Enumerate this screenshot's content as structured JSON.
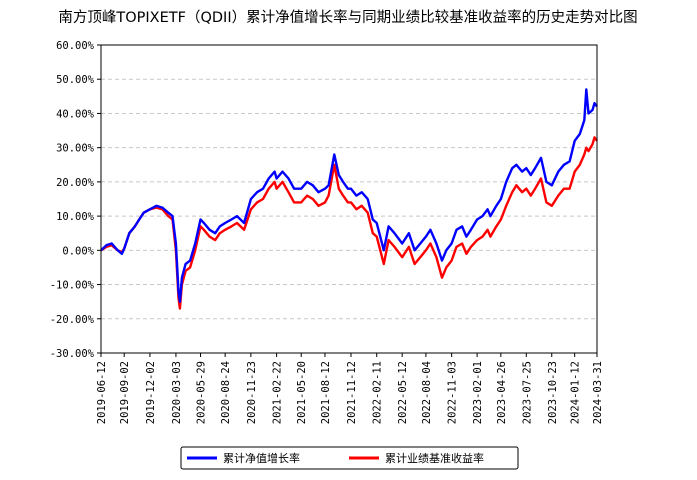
{
  "chart_data": {
    "type": "line",
    "title": "南方顶峰TOPIXETF（QDII）累计净值增长率与同期业绩比较基准收益率的历史走势对比图",
    "xlabel": "",
    "ylabel": "",
    "ylim": [
      -30,
      60
    ],
    "yticks": [
      "60.00%",
      "50.00%",
      "40.00%",
      "30.00%",
      "20.00%",
      "10.00%",
      "0.00%",
      "-10.00%",
      "-20.00%",
      "-30.00%"
    ],
    "ytick_values": [
      60,
      50,
      40,
      30,
      20,
      10,
      0,
      -10,
      -20,
      -30
    ],
    "xlim": [
      "2019-06-12",
      "2024-03-31"
    ],
    "xticks": [
      "2019-06-12",
      "2019-09-02",
      "2019-12-02",
      "2020-03-03",
      "2020-05-29",
      "2020-08-24",
      "2020-11-23",
      "2021-02-22",
      "2021-05-20",
      "2021-08-12",
      "2021-11-12",
      "2022-02-11",
      "2022-05-12",
      "2022-08-04",
      "2022-11-03",
      "2023-02-01",
      "2023-04-26",
      "2023-07-25",
      "2023-10-23",
      "2024-01-12",
      "2024-03-31"
    ],
    "grid": "horizontal-dashed",
    "legend_position": "bottom-center",
    "series": [
      {
        "name": "累计净值增长率",
        "color": "#0000ff",
        "points": [
          [
            "2019-06-12",
            0
          ],
          [
            "2019-07-01",
            1.5
          ],
          [
            "2019-07-20",
            2
          ],
          [
            "2019-08-10",
            0
          ],
          [
            "2019-08-25",
            -1
          ],
          [
            "2019-09-02",
            0.5
          ],
          [
            "2019-09-20",
            5
          ],
          [
            "2019-10-10",
            7
          ],
          [
            "2019-10-25",
            9
          ],
          [
            "2019-11-10",
            11
          ],
          [
            "2019-12-02",
            12
          ],
          [
            "2019-12-25",
            13
          ],
          [
            "2020-01-15",
            12.5
          ],
          [
            "2020-02-05",
            11
          ],
          [
            "2020-02-20",
            10
          ],
          [
            "2020-03-03",
            2
          ],
          [
            "2020-03-12",
            -12
          ],
          [
            "2020-03-17",
            -15
          ],
          [
            "2020-03-24",
            -8
          ],
          [
            "2020-04-06",
            -4
          ],
          [
            "2020-04-22",
            -3
          ],
          [
            "2020-05-10",
            2
          ],
          [
            "2020-05-29",
            9
          ],
          [
            "2020-06-10",
            8
          ],
          [
            "2020-06-30",
            6
          ],
          [
            "2020-07-20",
            5
          ],
          [
            "2020-08-05",
            7
          ],
          [
            "2020-08-24",
            8
          ],
          [
            "2020-09-15",
            9
          ],
          [
            "2020-10-05",
            10
          ],
          [
            "2020-10-30",
            8
          ],
          [
            "2020-11-23",
            15
          ],
          [
            "2020-12-15",
            17
          ],
          [
            "2021-01-05",
            18
          ],
          [
            "2021-01-25",
            21
          ],
          [
            "2021-02-15",
            23
          ],
          [
            "2021-02-22",
            21
          ],
          [
            "2021-03-15",
            23
          ],
          [
            "2021-04-05",
            21
          ],
          [
            "2021-04-25",
            18
          ],
          [
            "2021-05-20",
            18
          ],
          [
            "2021-06-10",
            20
          ],
          [
            "2021-06-30",
            19
          ],
          [
            "2021-07-20",
            17
          ],
          [
            "2021-08-12",
            18
          ],
          [
            "2021-08-25",
            19
          ],
          [
            "2021-09-14",
            28
          ],
          [
            "2021-09-30",
            22
          ],
          [
            "2021-10-15",
            20
          ],
          [
            "2021-11-01",
            18
          ],
          [
            "2021-11-12",
            18
          ],
          [
            "2021-12-01",
            16
          ],
          [
            "2021-12-20",
            17
          ],
          [
            "2022-01-10",
            15
          ],
          [
            "2022-01-28",
            9
          ],
          [
            "2022-02-11",
            8
          ],
          [
            "2022-03-08",
            0
          ],
          [
            "2022-03-25",
            7
          ],
          [
            "2022-04-15",
            5
          ],
          [
            "2022-05-12",
            2
          ],
          [
            "2022-06-05",
            5
          ],
          [
            "2022-06-25",
            0
          ],
          [
            "2022-07-15",
            2
          ],
          [
            "2022-08-04",
            4
          ],
          [
            "2022-08-20",
            6
          ],
          [
            "2022-09-10",
            2
          ],
          [
            "2022-09-30",
            -3
          ],
          [
            "2022-10-15",
            0
          ],
          [
            "2022-11-03",
            2
          ],
          [
            "2022-11-20",
            6
          ],
          [
            "2022-12-10",
            7
          ],
          [
            "2022-12-25",
            4
          ],
          [
            "2023-01-10",
            6
          ],
          [
            "2023-02-01",
            9
          ],
          [
            "2023-02-20",
            10
          ],
          [
            "2023-03-10",
            12
          ],
          [
            "2023-03-20",
            10
          ],
          [
            "2023-04-10",
            13
          ],
          [
            "2023-04-26",
            15
          ],
          [
            "2023-05-15",
            20
          ],
          [
            "2023-06-05",
            24
          ],
          [
            "2023-06-20",
            25
          ],
          [
            "2023-07-10",
            23
          ],
          [
            "2023-07-25",
            24
          ],
          [
            "2023-08-10",
            22
          ],
          [
            "2023-08-25",
            24
          ],
          [
            "2023-09-15",
            27
          ],
          [
            "2023-10-04",
            20
          ],
          [
            "2023-10-23",
            19
          ],
          [
            "2023-11-15",
            23
          ],
          [
            "2023-12-05",
            25
          ],
          [
            "2023-12-25",
            26
          ],
          [
            "2024-01-12",
            32
          ],
          [
            "2024-01-30",
            34
          ],
          [
            "2024-02-15",
            38
          ],
          [
            "2024-02-22",
            47
          ],
          [
            "2024-03-01",
            40
          ],
          [
            "2024-03-15",
            41
          ],
          [
            "2024-03-22",
            43
          ],
          [
            "2024-03-31",
            42
          ]
        ]
      },
      {
        "name": "累计业绩基准收益率",
        "color": "#ff0000",
        "points": [
          [
            "2019-06-12",
            0
          ],
          [
            "2019-07-01",
            1
          ],
          [
            "2019-07-20",
            1.5
          ],
          [
            "2019-08-10",
            0
          ],
          [
            "2019-08-25",
            -0.5
          ],
          [
            "2019-09-02",
            0.5
          ],
          [
            "2019-09-20",
            5
          ],
          [
            "2019-10-10",
            7
          ],
          [
            "2019-10-25",
            9
          ],
          [
            "2019-11-10",
            11
          ],
          [
            "2019-12-02",
            12
          ],
          [
            "2019-12-25",
            12.5
          ],
          [
            "2020-01-15",
            12
          ],
          [
            "2020-02-05",
            10
          ],
          [
            "2020-02-20",
            9
          ],
          [
            "2020-03-03",
            0
          ],
          [
            "2020-03-12",
            -14
          ],
          [
            "2020-03-17",
            -17
          ],
          [
            "2020-03-24",
            -10
          ],
          [
            "2020-04-06",
            -6
          ],
          [
            "2020-04-22",
            -5
          ],
          [
            "2020-05-10",
            0
          ],
          [
            "2020-05-29",
            7
          ],
          [
            "2020-06-10",
            6
          ],
          [
            "2020-06-30",
            4
          ],
          [
            "2020-07-20",
            3
          ],
          [
            "2020-08-05",
            5
          ],
          [
            "2020-08-24",
            6
          ],
          [
            "2020-09-15",
            7
          ],
          [
            "2020-10-05",
            8
          ],
          [
            "2020-10-30",
            6
          ],
          [
            "2020-11-23",
            12
          ],
          [
            "2020-12-15",
            14
          ],
          [
            "2021-01-05",
            15
          ],
          [
            "2021-01-25",
            18
          ],
          [
            "2021-02-15",
            20
          ],
          [
            "2021-02-22",
            18
          ],
          [
            "2021-03-15",
            20
          ],
          [
            "2021-04-05",
            17
          ],
          [
            "2021-04-25",
            14
          ],
          [
            "2021-05-20",
            14
          ],
          [
            "2021-06-10",
            16
          ],
          [
            "2021-06-30",
            15
          ],
          [
            "2021-07-20",
            13
          ],
          [
            "2021-08-12",
            14
          ],
          [
            "2021-08-25",
            16
          ],
          [
            "2021-09-14",
            25
          ],
          [
            "2021-09-30",
            18
          ],
          [
            "2021-10-15",
            16
          ],
          [
            "2021-11-01",
            14
          ],
          [
            "2021-11-12",
            14
          ],
          [
            "2021-12-01",
            12
          ],
          [
            "2021-12-20",
            13
          ],
          [
            "2022-01-10",
            11
          ],
          [
            "2022-01-28",
            5
          ],
          [
            "2022-02-11",
            4
          ],
          [
            "2022-03-08",
            -4
          ],
          [
            "2022-03-25",
            3
          ],
          [
            "2022-04-15",
            1
          ],
          [
            "2022-05-12",
            -2
          ],
          [
            "2022-06-05",
            1
          ],
          [
            "2022-06-25",
            -4
          ],
          [
            "2022-07-15",
            -2
          ],
          [
            "2022-08-04",
            0
          ],
          [
            "2022-08-20",
            2
          ],
          [
            "2022-09-10",
            -2
          ],
          [
            "2022-09-30",
            -8
          ],
          [
            "2022-10-15",
            -5
          ],
          [
            "2022-11-03",
            -3
          ],
          [
            "2022-11-20",
            1
          ],
          [
            "2022-12-10",
            2
          ],
          [
            "2022-12-25",
            -1
          ],
          [
            "2023-01-10",
            1
          ],
          [
            "2023-02-01",
            3
          ],
          [
            "2023-02-20",
            4
          ],
          [
            "2023-03-10",
            6
          ],
          [
            "2023-03-20",
            4
          ],
          [
            "2023-04-10",
            7
          ],
          [
            "2023-04-26",
            9
          ],
          [
            "2023-05-15",
            13
          ],
          [
            "2023-06-05",
            17
          ],
          [
            "2023-06-20",
            19
          ],
          [
            "2023-07-10",
            17
          ],
          [
            "2023-07-25",
            18
          ],
          [
            "2023-08-10",
            16
          ],
          [
            "2023-08-25",
            18
          ],
          [
            "2023-09-15",
            21
          ],
          [
            "2023-10-04",
            14
          ],
          [
            "2023-10-23",
            13
          ],
          [
            "2023-11-15",
            16
          ],
          [
            "2023-12-05",
            18
          ],
          [
            "2023-12-25",
            18
          ],
          [
            "2024-01-12",
            23
          ],
          [
            "2024-01-30",
            25
          ],
          [
            "2024-02-15",
            28
          ],
          [
            "2024-02-22",
            30
          ],
          [
            "2024-03-01",
            29
          ],
          [
            "2024-03-15",
            31
          ],
          [
            "2024-03-22",
            33
          ],
          [
            "2024-03-31",
            32
          ]
        ]
      }
    ]
  }
}
